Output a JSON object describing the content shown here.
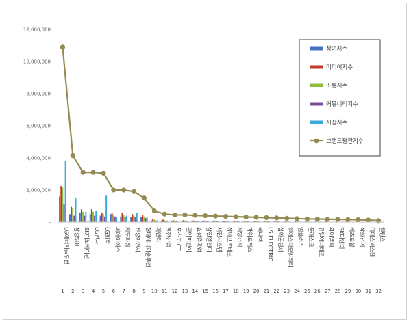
{
  "chart_data": {
    "type": "bar",
    "title": "",
    "xlabel": "",
    "ylabel": "",
    "ylim": [
      0,
      12000000
    ],
    "yticks": [
      "-",
      "2,000,000",
      "4,000,000",
      "6,000,000",
      "8,000,000",
      "10,000,000",
      "12,000,000"
    ],
    "grid": false,
    "legend_position": "right",
    "index_labels": [
      "1",
      "2",
      "3",
      "4",
      "5",
      "6",
      "7",
      "8",
      "9",
      "10",
      "11",
      "12",
      "13",
      "14",
      "15",
      "16",
      "17",
      "18",
      "19",
      "20",
      "21",
      "22",
      "23",
      "24",
      "25",
      "26",
      "27",
      "28",
      "29",
      "30",
      "31",
      "32"
    ],
    "categories": [
      "LG에너지솔루션",
      "삼성SDI",
      "SK이노베이션",
      "LG전자",
      "LG화학",
      "씨아이에스",
      "지투파워",
      "신성이엔지",
      "현대에너지솔루션",
      "피엔티",
      "한전산업",
      "포스코ICT",
      "원익피앤이",
      "효성중공업",
      "삼진엘앤디",
      "서진시스템",
      "상아프론테크",
      "세방전지",
      "파워로직스",
      "비나텍",
      "LS ELECTRIC",
      "삼화콘덴서",
      "엘에스이모빌리티",
      "엠플러스",
      "플래스크",
      "유일에너테크",
      "와이엠텍",
      "SK디앤디",
      "비츠로셀",
      "삼화전기",
      "티에스넥스젠",
      "웰링스"
    ],
    "series": [
      {
        "name": "참여지수",
        "color": "#4472c4",
        "values": [
          1600000,
          500000,
          600000,
          500000,
          400000,
          500000,
          350000,
          300000,
          300000,
          100000,
          60000,
          60000,
          40000,
          40000,
          40000,
          40000,
          40000,
          30000,
          30000,
          30000,
          30000,
          30000,
          20000,
          20000,
          20000,
          20000,
          20000,
          20000,
          15000,
          15000,
          10000,
          10000
        ]
      },
      {
        "name": "미디어지수",
        "color": "#c0392b",
        "values": [
          2250000,
          950000,
          800000,
          800000,
          600000,
          600000,
          600000,
          500000,
          450000,
          200000,
          150000,
          120000,
          120000,
          100000,
          100000,
          100000,
          80000,
          90000,
          80000,
          80000,
          70000,
          70000,
          60000,
          60000,
          60000,
          60000,
          50000,
          50000,
          40000,
          40000,
          30000,
          30000
        ]
      },
      {
        "name": "소통지수",
        "color": "#8fbc3f",
        "values": [
          2150000,
          850000,
          650000,
          650000,
          500000,
          450000,
          450000,
          400000,
          350000,
          150000,
          120000,
          100000,
          100000,
          80000,
          80000,
          80000,
          60000,
          60000,
          60000,
          60000,
          50000,
          50000,
          40000,
          40000,
          40000,
          40000,
          30000,
          30000,
          30000,
          30000,
          20000,
          20000
        ]
      },
      {
        "name": "커뮤니티지수",
        "color": "#7b4fa0",
        "values": [
          1100000,
          400000,
          400000,
          400000,
          350000,
          350000,
          300000,
          300000,
          250000,
          100000,
          80000,
          80000,
          60000,
          60000,
          60000,
          60000,
          50000,
          50000,
          50000,
          40000,
          40000,
          40000,
          30000,
          30000,
          30000,
          30000,
          20000,
          20000,
          20000,
          20000,
          15000,
          15000
        ]
      },
      {
        "name": "시장지수",
        "color": "#39a9d6",
        "values": [
          3800000,
          1500000,
          650000,
          700000,
          1650000,
          300000,
          400000,
          600000,
          300000,
          100000,
          90000,
          80000,
          80000,
          60000,
          50000,
          50000,
          50000,
          50000,
          40000,
          40000,
          40000,
          40000,
          30000,
          30000,
          30000,
          30000,
          20000,
          20000,
          20000,
          20000,
          15000,
          15000
        ]
      }
    ],
    "line": {
      "name": "브랜드평판지수",
      "color": "#948a54",
      "values": [
        10900000,
        4150000,
        3100000,
        3100000,
        3050000,
        2000000,
        2000000,
        1900000,
        1500000,
        700000,
        500000,
        450000,
        450000,
        420000,
        400000,
        380000,
        360000,
        340000,
        320000,
        300000,
        280000,
        260000,
        240000,
        220000,
        200000,
        190000,
        180000,
        170000,
        160000,
        150000,
        130000,
        90000
      ]
    }
  }
}
